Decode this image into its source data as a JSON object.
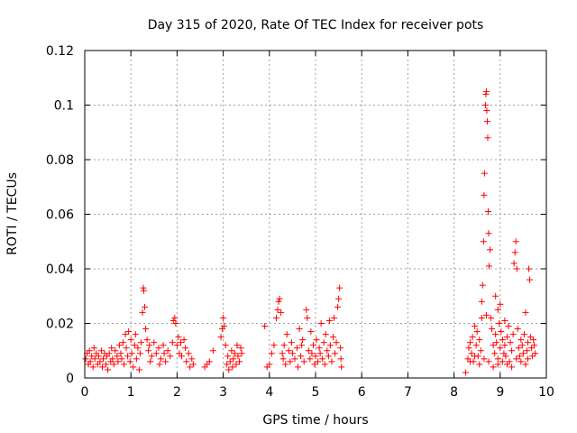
{
  "chart_data": {
    "type": "scatter",
    "title": "Day 315 of 2020, Rate Of TEC Index for receiver pots",
    "xlabel": "GPS time / hours",
    "ylabel": "ROTI / TECUs",
    "xlim": [
      0,
      10
    ],
    "ylim": [
      0,
      0.12
    ],
    "xticks": [
      "0",
      "1",
      "2",
      "3",
      "4",
      "5",
      "6",
      "7",
      "8",
      "9",
      "10"
    ],
    "yticks": [
      "0",
      "0.02",
      "0.04",
      "0.06",
      "0.08",
      "0.1",
      "0.12"
    ],
    "grid": true,
    "marker": "+",
    "color": "#ff0000",
    "series": [
      {
        "name": "ROTI",
        "points": [
          [
            0.02,
            0.007
          ],
          [
            0.05,
            0.009
          ],
          [
            0.08,
            0.005
          ],
          [
            0.1,
            0.01
          ],
          [
            0.12,
            0.006
          ],
          [
            0.15,
            0.008
          ],
          [
            0.18,
            0.004
          ],
          [
            0.2,
            0.011
          ],
          [
            0.22,
            0.007
          ],
          [
            0.25,
            0.009
          ],
          [
            0.28,
            0.005
          ],
          [
            0.3,
            0.008
          ],
          [
            0.33,
            0.006
          ],
          [
            0.36,
            0.01
          ],
          [
            0.38,
            0.004
          ],
          [
            0.4,
            0.007
          ],
          [
            0.43,
            0.009
          ],
          [
            0.46,
            0.005
          ],
          [
            0.48,
            0.008
          ],
          [
            0.5,
            0.003
          ],
          [
            0.53,
            0.009
          ],
          [
            0.56,
            0.006
          ],
          [
            0.58,
            0.011
          ],
          [
            0.6,
            0.007
          ],
          [
            0.63,
            0.005
          ],
          [
            0.66,
            0.01
          ],
          [
            0.7,
            0.008
          ],
          [
            0.72,
            0.006
          ],
          [
            0.75,
            0.012
          ],
          [
            0.78,
            0.009
          ],
          [
            0.8,
            0.007
          ],
          [
            0.83,
            0.013
          ],
          [
            0.85,
            0.005
          ],
          [
            0.88,
            0.016
          ],
          [
            0.9,
            0.011
          ],
          [
            0.93,
            0.008
          ],
          [
            0.95,
            0.017
          ],
          [
            0.98,
            0.006
          ],
          [
            1.0,
            0.014
          ],
          [
            1.02,
            0.009
          ],
          [
            1.05,
            0.004
          ],
          [
            1.08,
            0.012
          ],
          [
            1.1,
            0.016
          ],
          [
            1.12,
            0.007
          ],
          [
            1.15,
            0.011
          ],
          [
            1.18,
            0.003
          ],
          [
            1.2,
            0.009
          ],
          [
            1.22,
            0.013
          ],
          [
            1.25,
            0.024
          ],
          [
            1.27,
            0.033
          ],
          [
            1.28,
            0.032
          ],
          [
            1.3,
            0.026
          ],
          [
            1.32,
            0.018
          ],
          [
            1.35,
            0.014
          ],
          [
            1.38,
            0.01
          ],
          [
            1.4,
            0.012
          ],
          [
            1.42,
            0.006
          ],
          [
            1.45,
            0.008
          ],
          [
            1.5,
            0.013
          ],
          [
            1.55,
            0.009
          ],
          [
            1.6,
            0.011
          ],
          [
            1.62,
            0.005
          ],
          [
            1.65,
            0.007
          ],
          [
            1.7,
            0.012
          ],
          [
            1.72,
            0.009
          ],
          [
            1.75,
            0.006
          ],
          [
            1.8,
            0.01
          ],
          [
            1.85,
            0.008
          ],
          [
            1.9,
            0.013
          ],
          [
            1.92,
            0.021
          ],
          [
            1.95,
            0.022
          ],
          [
            1.97,
            0.02
          ],
          [
            2.0,
            0.012
          ],
          [
            2.03,
            0.015
          ],
          [
            2.05,
            0.009
          ],
          [
            2.08,
            0.013
          ],
          [
            2.1,
            0.008
          ],
          [
            2.15,
            0.014
          ],
          [
            2.18,
            0.011
          ],
          [
            2.2,
            0.006
          ],
          [
            2.25,
            0.009
          ],
          [
            2.28,
            0.004
          ],
          [
            2.32,
            0.007
          ],
          [
            2.35,
            0.005
          ],
          [
            2.6,
            0.004
          ],
          [
            2.65,
            0.005
          ],
          [
            2.7,
            0.006
          ],
          [
            2.78,
            0.01
          ],
          [
            2.95,
            0.015
          ],
          [
            2.98,
            0.018
          ],
          [
            3.0,
            0.022
          ],
          [
            3.02,
            0.019
          ],
          [
            3.05,
            0.012
          ],
          [
            3.08,
            0.005
          ],
          [
            3.1,
            0.008
          ],
          [
            3.12,
            0.003
          ],
          [
            3.15,
            0.006
          ],
          [
            3.18,
            0.01
          ],
          [
            3.2,
            0.004
          ],
          [
            3.22,
            0.007
          ],
          [
            3.25,
            0.009
          ],
          [
            3.28,
            0.005
          ],
          [
            3.3,
            0.012
          ],
          [
            3.32,
            0.008
          ],
          [
            3.35,
            0.006
          ],
          [
            3.38,
            0.011
          ],
          [
            3.4,
            0.009
          ],
          [
            3.9,
            0.019
          ],
          [
            3.95,
            0.004
          ],
          [
            4.0,
            0.005
          ],
          [
            4.05,
            0.009
          ],
          [
            4.1,
            0.012
          ],
          [
            4.15,
            0.022
          ],
          [
            4.18,
            0.025
          ],
          [
            4.2,
            0.028
          ],
          [
            4.22,
            0.029
          ],
          [
            4.25,
            0.024
          ],
          [
            4.28,
            0.009
          ],
          [
            4.3,
            0.007
          ],
          [
            4.32,
            0.012
          ],
          [
            4.35,
            0.005
          ],
          [
            4.38,
            0.016
          ],
          [
            4.42,
            0.01
          ],
          [
            4.45,
            0.006
          ],
          [
            4.48,
            0.013
          ],
          [
            4.5,
            0.009
          ],
          [
            4.55,
            0.007
          ],
          [
            4.6,
            0.011
          ],
          [
            4.62,
            0.004
          ],
          [
            4.65,
            0.018
          ],
          [
            4.68,
            0.008
          ],
          [
            4.7,
            0.012
          ],
          [
            4.72,
            0.014
          ],
          [
            4.75,
            0.006
          ],
          [
            4.8,
            0.025
          ],
          [
            4.82,
            0.022
          ],
          [
            4.85,
            0.01
          ],
          [
            4.88,
            0.007
          ],
          [
            4.9,
            0.017
          ],
          [
            4.92,
            0.009
          ],
          [
            4.95,
            0.012
          ],
          [
            4.98,
            0.005
          ],
          [
            5.0,
            0.008
          ],
          [
            5.02,
            0.014
          ],
          [
            5.05,
            0.006
          ],
          [
            5.08,
            0.011
          ],
          [
            5.1,
            0.009
          ],
          [
            5.12,
            0.02
          ],
          [
            5.15,
            0.007
          ],
          [
            5.18,
            0.013
          ],
          [
            5.2,
            0.005
          ],
          [
            5.22,
            0.016
          ],
          [
            5.25,
            0.01
          ],
          [
            5.28,
            0.008
          ],
          [
            5.3,
            0.021
          ],
          [
            5.32,
            0.012
          ],
          [
            5.35,
            0.006
          ],
          [
            5.38,
            0.015
          ],
          [
            5.4,
            0.022
          ],
          [
            5.42,
            0.009
          ],
          [
            5.45,
            0.013
          ],
          [
            5.48,
            0.026
          ],
          [
            5.5,
            0.029
          ],
          [
            5.52,
            0.033
          ],
          [
            5.54,
            0.011
          ],
          [
            5.55,
            0.007
          ],
          [
            5.56,
            0.004
          ],
          [
            8.25,
            0.002
          ],
          [
            8.3,
            0.007
          ],
          [
            8.32,
            0.011
          ],
          [
            8.35,
            0.013
          ],
          [
            8.38,
            0.009
          ],
          [
            8.4,
            0.015
          ],
          [
            8.42,
            0.006
          ],
          [
            8.45,
            0.019
          ],
          [
            8.48,
            0.012
          ],
          [
            8.5,
            0.017
          ],
          [
            8.52,
            0.008
          ],
          [
            8.55,
            0.014
          ],
          [
            8.58,
            0.01
          ],
          [
            8.6,
            0.022
          ],
          [
            8.62,
            0.034
          ],
          [
            8.64,
            0.05
          ],
          [
            8.65,
            0.067
          ],
          [
            8.66,
            0.075
          ],
          [
            8.68,
            0.1
          ],
          [
            8.69,
            0.104
          ],
          [
            8.7,
            0.105
          ],
          [
            8.71,
            0.098
          ],
          [
            8.72,
            0.094
          ],
          [
            8.73,
            0.088
          ],
          [
            8.74,
            0.061
          ],
          [
            8.75,
            0.053
          ],
          [
            8.76,
            0.041
          ],
          [
            8.78,
            0.047
          ],
          [
            8.8,
            0.022
          ],
          [
            8.82,
            0.018
          ],
          [
            8.85,
            0.012
          ],
          [
            8.88,
            0.009
          ],
          [
            8.9,
            0.016
          ],
          [
            8.92,
            0.013
          ],
          [
            8.95,
            0.007
          ],
          [
            8.98,
            0.02
          ],
          [
            9.0,
            0.011
          ],
          [
            9.02,
            0.017
          ],
          [
            9.05,
            0.014
          ],
          [
            9.08,
            0.009
          ],
          [
            9.1,
            0.012
          ],
          [
            9.12,
            0.008
          ],
          [
            9.15,
            0.015
          ],
          [
            9.18,
            0.019
          ],
          [
            9.2,
            0.006
          ],
          [
            9.22,
            0.013
          ],
          [
            9.25,
            0.01
          ],
          [
            9.28,
            0.016
          ],
          [
            9.3,
            0.042
          ],
          [
            9.32,
            0.046
          ],
          [
            9.34,
            0.05
          ],
          [
            9.36,
            0.04
          ],
          [
            9.38,
            0.018
          ],
          [
            9.4,
            0.011
          ],
          [
            9.42,
            0.008
          ],
          [
            9.45,
            0.014
          ],
          [
            9.48,
            0.012
          ],
          [
            9.5,
            0.009
          ],
          [
            9.52,
            0.016
          ],
          [
            9.55,
            0.024
          ],
          [
            9.58,
            0.01
          ],
          [
            9.6,
            0.013
          ],
          [
            9.62,
            0.04
          ],
          [
            9.64,
            0.036
          ],
          [
            9.66,
            0.015
          ],
          [
            9.68,
            0.011
          ],
          [
            9.7,
            0.008
          ],
          [
            9.72,
            0.014
          ],
          [
            9.74,
            0.012
          ],
          [
            9.76,
            0.009
          ],
          [
            9.6,
            0.007
          ],
          [
            9.55,
            0.005
          ],
          [
            9.45,
            0.006
          ],
          [
            9.35,
            0.007
          ],
          [
            9.25,
            0.004
          ],
          [
            9.15,
            0.005
          ],
          [
            9.05,
            0.006
          ],
          [
            8.95,
            0.005
          ],
          [
            8.85,
            0.004
          ],
          [
            8.75,
            0.006
          ],
          [
            8.65,
            0.007
          ],
          [
            8.55,
            0.005
          ],
          [
            8.45,
            0.008
          ],
          [
            8.35,
            0.006
          ],
          [
            8.9,
            0.03
          ],
          [
            9.0,
            0.027
          ],
          [
            8.95,
            0.025
          ],
          [
            9.1,
            0.021
          ],
          [
            8.7,
            0.023
          ],
          [
            8.6,
            0.028
          ]
        ]
      }
    ]
  }
}
